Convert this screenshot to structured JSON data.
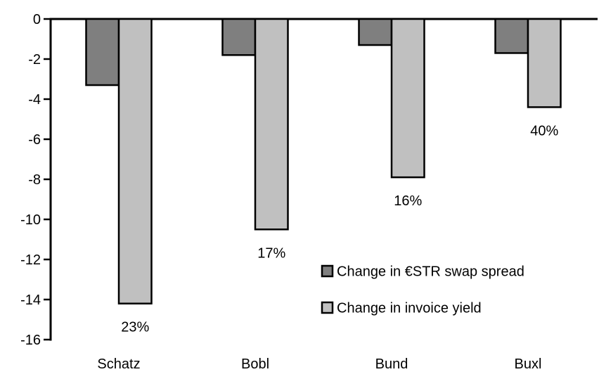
{
  "chart_data": {
    "type": "bar",
    "orientation": "vertical-negative",
    "title": "",
    "categories": [
      "Schatz",
      "Bobl",
      "Bund",
      "Buxl"
    ],
    "series": [
      {
        "name": "Change in €STR swap spread",
        "color": "#7F7F7F",
        "values": [
          -3.3,
          -1.8,
          -1.3,
          -1.7
        ]
      },
      {
        "name": "Change in invoice yield",
        "color": "#C0C0C0",
        "values": [
          -14.2,
          -10.5,
          -7.9,
          -4.4
        ],
        "data_labels": [
          "23%",
          "17%",
          "16%",
          "40%"
        ]
      }
    ],
    "y_axis": {
      "min": -16,
      "max": 0,
      "tick_step": 2,
      "tick_labels": [
        "0",
        "-2",
        "-4",
        "-6",
        "-8",
        "-10",
        "-12",
        "-14",
        "-16"
      ]
    },
    "x_axis": {
      "tick_labels": [
        "Schatz",
        "Bobl",
        "Bund",
        "Buxl"
      ]
    },
    "legend": {
      "position": "inside-middle-right",
      "entries": [
        "Change in €STR swap spread",
        "Change in invoice yield"
      ]
    },
    "grid": false,
    "bar_outline_color": "#000000",
    "axis_color": "#000000",
    "text_color": "#000000",
    "background": "#FFFFFF"
  }
}
